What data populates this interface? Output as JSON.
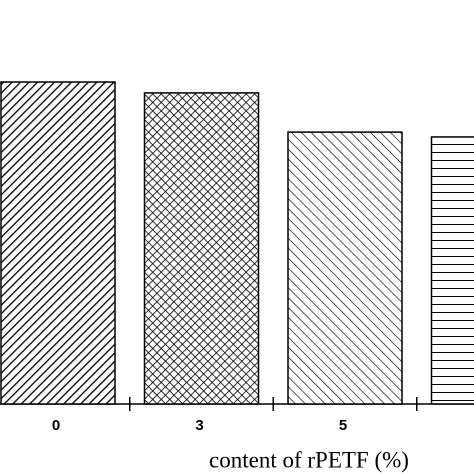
{
  "chart_data": {
    "type": "bar",
    "x_label": "content of rPETF (%)",
    "categories": [
      "0",
      "3",
      "5",
      null
    ],
    "values": [
      79.7,
      77.0,
      67.3,
      66.1
    ],
    "ylim": [
      0,
      100
    ],
    "color": "#000000"
  }
}
